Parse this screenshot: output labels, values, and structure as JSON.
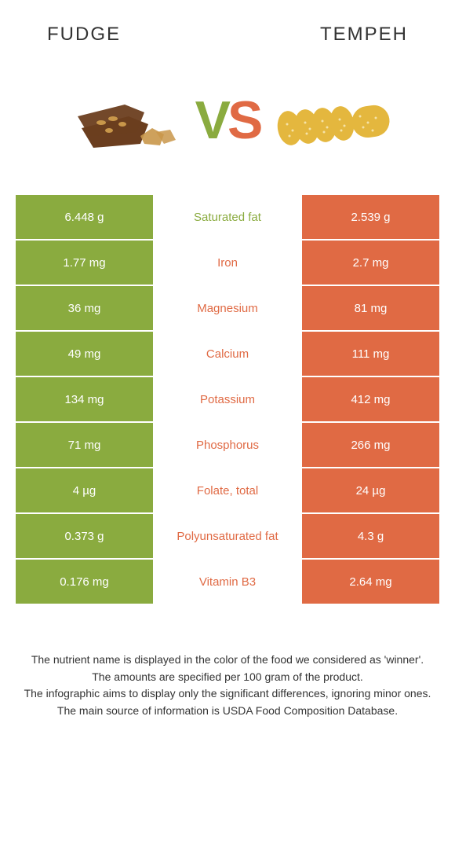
{
  "header": {
    "left": "Fudge",
    "right": "Tempeh"
  },
  "vs": {
    "v": "V",
    "s": "S"
  },
  "colors": {
    "left_bg": "#8aab3f",
    "right_bg": "#e06a44",
    "mid_left": "#8aab3f",
    "mid_right": "#e06a44"
  },
  "rows": [
    {
      "left": "6.448 g",
      "mid": "Saturated fat",
      "right": "2.539 g",
      "winner": "left"
    },
    {
      "left": "1.77 mg",
      "mid": "Iron",
      "right": "2.7 mg",
      "winner": "right"
    },
    {
      "left": "36 mg",
      "mid": "Magnesium",
      "right": "81 mg",
      "winner": "right"
    },
    {
      "left": "49 mg",
      "mid": "Calcium",
      "right": "111 mg",
      "winner": "right"
    },
    {
      "left": "134 mg",
      "mid": "Potassium",
      "right": "412 mg",
      "winner": "right"
    },
    {
      "left": "71 mg",
      "mid": "Phosphorus",
      "right": "266 mg",
      "winner": "right"
    },
    {
      "left": "4 µg",
      "mid": "Folate, total",
      "right": "24 µg",
      "winner": "right"
    },
    {
      "left": "0.373 g",
      "mid": "Polyunsaturated fat",
      "right": "4.3 g",
      "winner": "right"
    },
    {
      "left": "0.176 mg",
      "mid": "Vitamin B3",
      "right": "2.64 mg",
      "winner": "right"
    }
  ],
  "footer": [
    "The nutrient name is displayed in the color of the food we considered as 'winner'.",
    "The amounts are specified per 100 gram of the product.",
    "The infographic aims to display only the significant differences, ignoring minor ones.",
    "The main source of information is USDA Food Composition Database."
  ]
}
